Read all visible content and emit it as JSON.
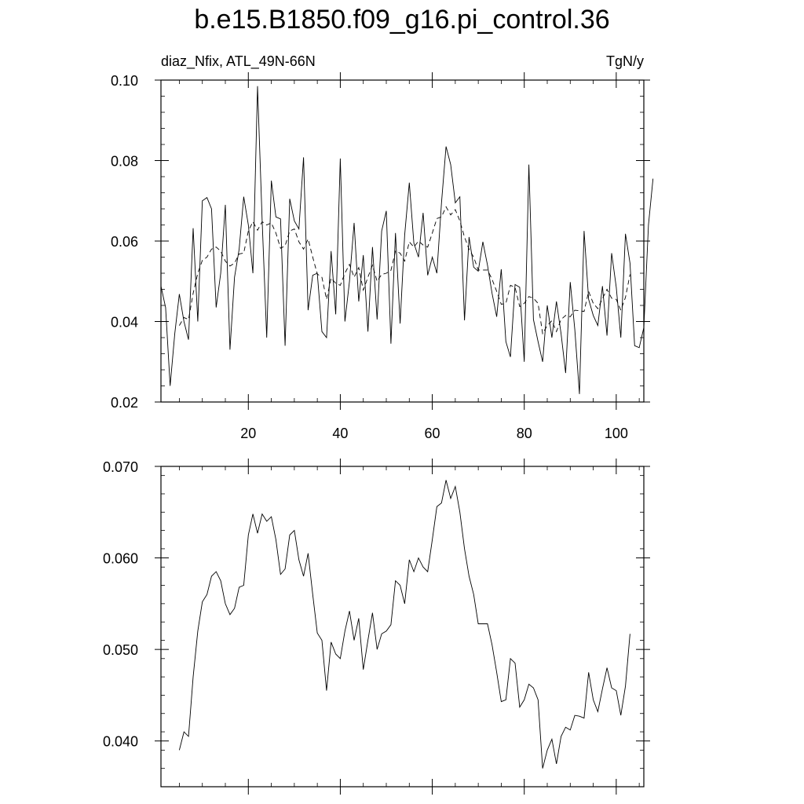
{
  "title": "b.e15.B1850.f09_g16.pi_control.36",
  "chart_data": [
    {
      "type": "line",
      "left_label": "diaz_Nfix, ATL_49N-66N",
      "right_label": "TgN/y",
      "xlim": [
        1,
        106
      ],
      "ylim": [
        0.02,
        0.1
      ],
      "x_ticks": [
        20,
        40,
        60,
        80,
        100
      ],
      "x_tick_labels": [
        "20",
        "40",
        "60",
        "80",
        "100"
      ],
      "y_ticks": [
        0.02,
        0.04,
        0.06,
        0.08,
        0.1
      ],
      "y_tick_labels": [
        "0.02",
        "0.04",
        "0.06",
        "0.08",
        "0.10"
      ],
      "x_start": 1,
      "series": [
        {
          "style": "solid",
          "values": [
            0.0488,
            0.0435,
            0.024,
            0.037,
            0.0468,
            0.04,
            0.0355,
            0.0632,
            0.04,
            0.07,
            0.0708,
            0.068,
            0.0435,
            0.052,
            0.069,
            0.033,
            0.051,
            0.058,
            0.071,
            0.064,
            0.052,
            0.0985,
            0.065,
            0.036,
            0.075,
            0.066,
            0.0655,
            0.034,
            0.0705,
            0.065,
            0.063,
            0.0808,
            0.0428,
            0.0515,
            0.052,
            0.0375,
            0.036,
            0.0575,
            0.0418,
            0.0805,
            0.04,
            0.05,
            0.0645,
            0.045,
            0.0565,
            0.0375,
            0.0585,
            0.0405,
            0.0625,
            0.0675,
            0.0345,
            0.062,
            0.0395,
            0.0615,
            0.0745,
            0.0595,
            0.056,
            0.067,
            0.0515,
            0.056,
            0.052,
            0.0695,
            0.0835,
            0.079,
            0.0695,
            0.071,
            0.0403,
            0.061,
            0.0535,
            0.0525,
            0.0598,
            0.054,
            0.047,
            0.0412,
            0.053,
            0.035,
            0.0312,
            0.0492,
            0.0485,
            0.03,
            0.079,
            0.0405,
            0.035,
            0.03,
            0.044,
            0.036,
            0.045,
            0.037,
            0.0272,
            0.0498,
            0.038,
            0.022,
            0.0625,
            0.0455,
            0.0415,
            0.039,
            0.0488,
            0.0365,
            0.057,
            0.0485,
            0.036,
            0.0618,
            0.0545,
            0.034,
            0.0335,
            0.0385,
            0.064,
            0.0755
          ]
        },
        {
          "style": "dashed",
          "x_start": 5,
          "values": [
            0.039,
            0.041,
            0.0405,
            0.047,
            0.052,
            0.0552,
            0.056,
            0.058,
            0.0585,
            0.0575,
            0.055,
            0.0538,
            0.0545,
            0.0568,
            0.057,
            0.0625,
            0.0648,
            0.0627,
            0.0648,
            0.064,
            0.0645,
            0.062,
            0.0582,
            0.0588,
            0.0625,
            0.063,
            0.0598,
            0.058,
            0.0605,
            0.056,
            0.0518,
            0.051,
            0.0455,
            0.0508,
            0.0495,
            0.049,
            0.052,
            0.0542,
            0.051,
            0.0534,
            0.0478,
            0.051,
            0.054,
            0.05,
            0.0517,
            0.052,
            0.0527,
            0.0575,
            0.057,
            0.055,
            0.0598,
            0.0585,
            0.06,
            0.059,
            0.0585,
            0.062,
            0.0656,
            0.066,
            0.0685,
            0.0665,
            0.0678,
            0.065,
            0.061,
            0.058,
            0.056,
            0.0528,
            0.0528,
            0.0528,
            0.0505,
            0.0475,
            0.0443,
            0.0445,
            0.049,
            0.0485,
            0.0437,
            0.0445,
            0.0462,
            0.0458,
            0.0445,
            0.037,
            0.039,
            0.0402,
            0.0375,
            0.0405,
            0.0415,
            0.0412,
            0.0428,
            0.0427,
            0.0425,
            0.0475,
            0.0445,
            0.0432,
            0.0457,
            0.048,
            0.0458,
            0.0455,
            0.0428,
            0.046,
            0.0517
          ]
        }
      ]
    },
    {
      "type": "line",
      "xlim": [
        1,
        106
      ],
      "ylim": [
        0.035,
        0.07
      ],
      "x_ticks": [
        20,
        40,
        60,
        80,
        100
      ],
      "y_ticks": [
        0.04,
        0.05,
        0.06,
        0.07
      ],
      "y_tick_labels": [
        "0.040",
        "0.050",
        "0.060",
        "0.070"
      ],
      "series": [
        {
          "style": "solid",
          "x_start": 5,
          "values": [
            0.039,
            0.041,
            0.0405,
            0.047,
            0.052,
            0.0552,
            0.056,
            0.058,
            0.0585,
            0.0575,
            0.055,
            0.0538,
            0.0545,
            0.0568,
            0.057,
            0.0625,
            0.0648,
            0.0627,
            0.0648,
            0.064,
            0.0645,
            0.062,
            0.0582,
            0.0588,
            0.0625,
            0.063,
            0.0598,
            0.058,
            0.0605,
            0.056,
            0.0518,
            0.051,
            0.0455,
            0.0508,
            0.0495,
            0.049,
            0.052,
            0.0542,
            0.051,
            0.0534,
            0.0478,
            0.051,
            0.054,
            0.05,
            0.0517,
            0.052,
            0.0527,
            0.0575,
            0.057,
            0.055,
            0.0598,
            0.0585,
            0.06,
            0.059,
            0.0585,
            0.062,
            0.0656,
            0.066,
            0.0685,
            0.0665,
            0.0678,
            0.065,
            0.061,
            0.058,
            0.056,
            0.0528,
            0.0528,
            0.0528,
            0.0505,
            0.0475,
            0.0443,
            0.0445,
            0.049,
            0.0485,
            0.0437,
            0.0445,
            0.0462,
            0.0458,
            0.0445,
            0.037,
            0.039,
            0.0402,
            0.0375,
            0.0405,
            0.0415,
            0.0412,
            0.0428,
            0.0427,
            0.0425,
            0.0475,
            0.0445,
            0.0432,
            0.0457,
            0.048,
            0.0458,
            0.0455,
            0.0428,
            0.046,
            0.0517
          ]
        }
      ]
    }
  ]
}
